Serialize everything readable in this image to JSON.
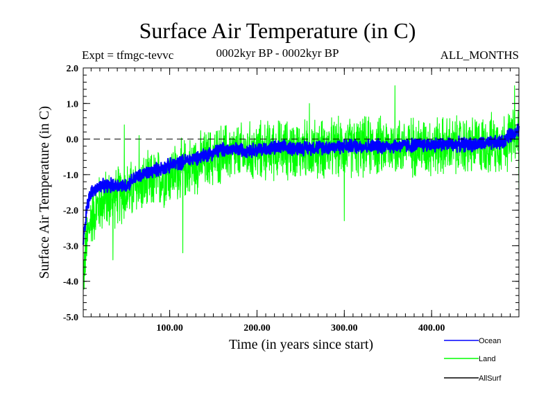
{
  "header": {
    "title": "Surface Air Temperature (in C)",
    "expt": "Expt = tfmgc-tevvc",
    "period": "0002kyr BP - 0002kyr BP",
    "months": "ALL_MONTHS"
  },
  "chart_data": {
    "type": "line",
    "xlabel": "Time (in years since start)",
    "ylabel": "Surface Air Temperature (in C)",
    "xlim": [
      1,
      500
    ],
    "ylim": [
      -5.0,
      2.0
    ],
    "x_ticks": [
      100,
      200,
      300,
      400
    ],
    "x_tick_labels": [
      "100.00",
      "200.00",
      "300.00",
      "400.00"
    ],
    "y_ticks": [
      -5,
      -4,
      -3,
      -2,
      -1,
      0,
      1,
      2
    ],
    "y_tick_labels": [
      "-5.0",
      "-4.0",
      "-3.0",
      "-2.0",
      "-1.0",
      "0.0",
      "1.0",
      "2.0"
    ],
    "reference_line": {
      "y": 0.0,
      "style": "dashed"
    },
    "series": [
      {
        "name": "Land",
        "color": "#00ff00",
        "x": [
          1,
          5,
          10,
          20,
          30,
          40,
          50,
          60,
          80,
          100,
          120,
          140,
          160,
          180,
          200,
          220,
          250,
          300,
          350,
          400,
          450,
          480,
          500
        ],
        "trend": [
          -3.8,
          -2.9,
          -2.2,
          -1.8,
          -1.7,
          -1.6,
          -1.5,
          -1.4,
          -1.2,
          -1.0,
          -0.8,
          -0.6,
          -0.4,
          -0.4,
          -0.35,
          -0.3,
          -0.3,
          -0.25,
          -0.2,
          -0.2,
          -0.2,
          -0.1,
          0.1
        ],
        "spread": 0.75,
        "extremes": [
          [
            2,
            -4.2
          ],
          [
            35,
            -3.4
          ],
          [
            48,
            0.4
          ],
          [
            65,
            0.1
          ],
          [
            115,
            -3.2
          ],
          [
            260,
            1.0
          ],
          [
            300,
            -2.3
          ],
          [
            358,
            1.5
          ],
          [
            495,
            1.5
          ],
          [
            500,
            -1.4
          ]
        ]
      },
      {
        "name": "Ocean",
        "color": "#0000ff",
        "x": [
          1,
          5,
          10,
          20,
          30,
          40,
          50,
          60,
          80,
          100,
          120,
          140,
          160,
          180,
          200,
          220,
          250,
          300,
          350,
          400,
          450,
          480,
          500
        ],
        "trend": [
          -2.9,
          -1.9,
          -1.5,
          -1.35,
          -1.3,
          -1.3,
          -1.3,
          -1.1,
          -0.9,
          -0.75,
          -0.6,
          -0.45,
          -0.3,
          -0.3,
          -0.3,
          -0.25,
          -0.25,
          -0.2,
          -0.2,
          -0.15,
          -0.15,
          -0.1,
          0.3
        ],
        "spread": 0.18
      },
      {
        "name": "AllSurf",
        "color": "#000000",
        "x": [],
        "trend": []
      }
    ],
    "legend": [
      "Ocean",
      "Land",
      "AllSurf"
    ],
    "legend_position": "bottom-right"
  }
}
